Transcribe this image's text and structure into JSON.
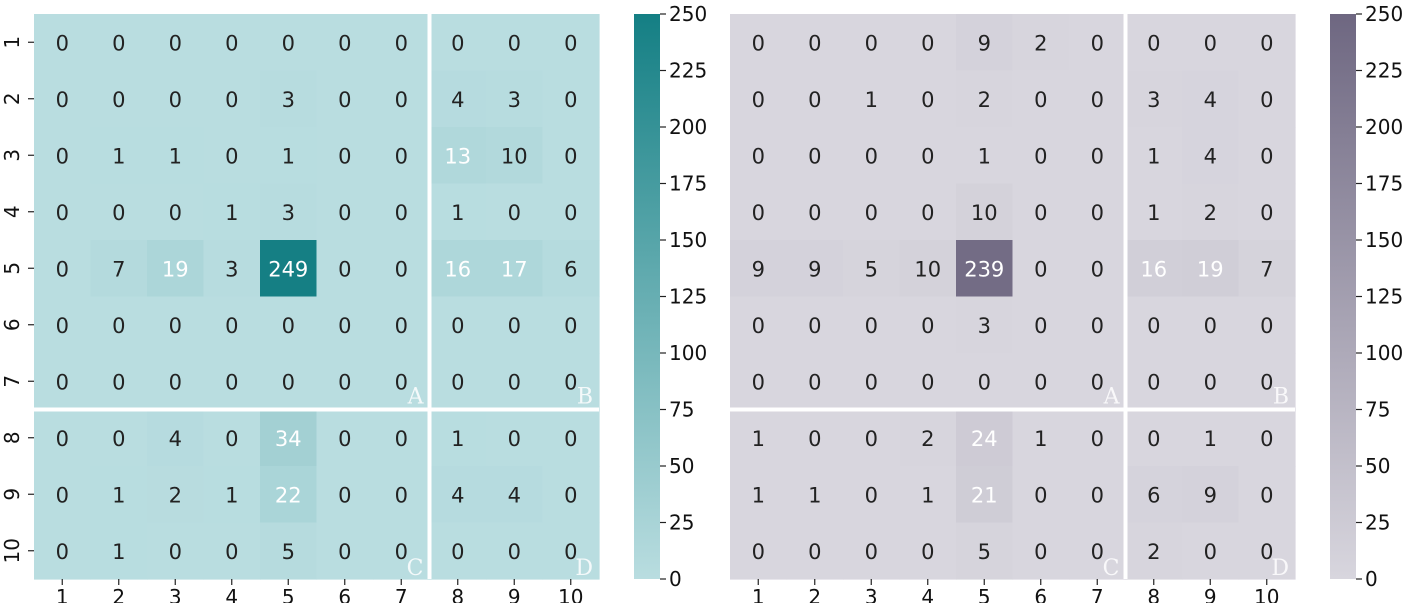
{
  "chart_data": [
    {
      "type": "heatmap",
      "title": "",
      "xlabel": "",
      "ylabel": "",
      "x_categories": [
        "1",
        "2",
        "3",
        "4",
        "5",
        "6",
        "7",
        "8",
        "9",
        "10"
      ],
      "y_categories": [
        "1",
        "2",
        "3",
        "4",
        "5",
        "6",
        "7",
        "8",
        "9",
        "10"
      ],
      "values": [
        [
          0,
          0,
          0,
          0,
          0,
          0,
          0,
          0,
          0,
          0
        ],
        [
          0,
          0,
          0,
          0,
          3,
          0,
          0,
          4,
          3,
          0
        ],
        [
          0,
          1,
          1,
          0,
          1,
          0,
          0,
          13,
          10,
          0
        ],
        [
          0,
          0,
          0,
          1,
          3,
          0,
          0,
          1,
          0,
          0
        ],
        [
          0,
          7,
          19,
          3,
          249,
          0,
          0,
          16,
          17,
          6
        ],
        [
          0,
          0,
          0,
          0,
          0,
          0,
          0,
          0,
          0,
          0
        ],
        [
          0,
          0,
          0,
          0,
          0,
          0,
          0,
          0,
          0,
          0
        ],
        [
          0,
          0,
          4,
          0,
          34,
          0,
          0,
          1,
          0,
          0
        ],
        [
          0,
          1,
          2,
          1,
          22,
          0,
          0,
          4,
          4,
          0
        ],
        [
          0,
          1,
          0,
          0,
          5,
          0,
          0,
          0,
          0,
          0
        ]
      ],
      "quadrant_labels": [
        "A",
        "B",
        "C",
        "D"
      ],
      "colorbar": {
        "min": 0,
        "max": 250,
        "ticks": [
          "0",
          "25",
          "50",
          "75",
          "100",
          "125",
          "150",
          "175",
          "200",
          "225",
          "250"
        ]
      },
      "colors": {
        "low": "#b9dde0",
        "high": "#147f84"
      }
    },
    {
      "type": "heatmap",
      "title": "",
      "xlabel": "",
      "ylabel": "",
      "x_categories": [
        "1",
        "2",
        "3",
        "4",
        "5",
        "6",
        "7",
        "8",
        "9",
        "10"
      ],
      "y_categories": [
        "1",
        "2",
        "3",
        "4",
        "5",
        "6",
        "7",
        "8",
        "9",
        "10"
      ],
      "values": [
        [
          0,
          0,
          0,
          0,
          9,
          2,
          0,
          0,
          0,
          0
        ],
        [
          0,
          0,
          1,
          0,
          2,
          0,
          0,
          3,
          4,
          0
        ],
        [
          0,
          0,
          0,
          0,
          1,
          0,
          0,
          1,
          4,
          0
        ],
        [
          0,
          0,
          0,
          0,
          10,
          0,
          0,
          1,
          2,
          0
        ],
        [
          9,
          9,
          5,
          10,
          239,
          0,
          0,
          16,
          19,
          7
        ],
        [
          0,
          0,
          0,
          0,
          3,
          0,
          0,
          0,
          0,
          0
        ],
        [
          0,
          0,
          0,
          0,
          0,
          0,
          0,
          0,
          0,
          0
        ],
        [
          1,
          0,
          0,
          2,
          24,
          1,
          0,
          0,
          1,
          0
        ],
        [
          1,
          1,
          0,
          1,
          21,
          0,
          0,
          6,
          9,
          0
        ],
        [
          0,
          0,
          0,
          0,
          5,
          0,
          0,
          2,
          0,
          0
        ]
      ],
      "quadrant_labels": [
        "A",
        "B",
        "C",
        "D"
      ],
      "colorbar": {
        "min": 0,
        "max": 250,
        "ticks": [
          "0",
          "25",
          "50",
          "75",
          "100",
          "125",
          "150",
          "175",
          "200",
          "225",
          "250"
        ]
      },
      "colors": {
        "low": "#d8d6de",
        "high": "#6e6781"
      }
    }
  ]
}
